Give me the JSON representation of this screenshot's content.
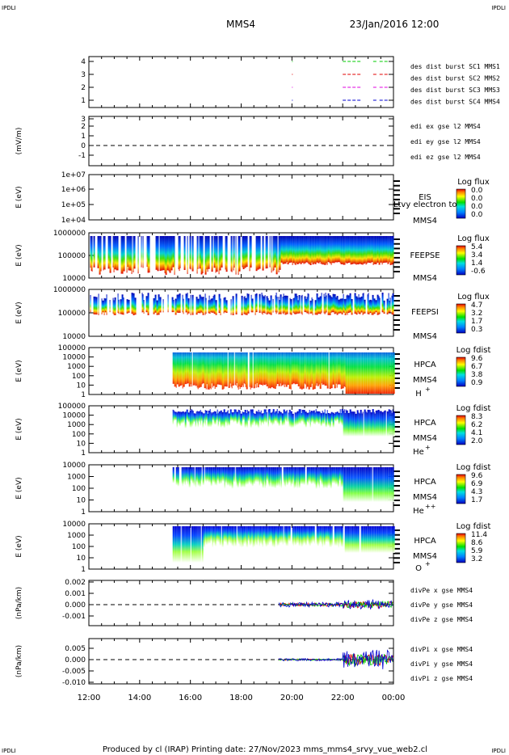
{
  "header": {
    "corner_tl": "IPDLI",
    "corner_tr": "IPDLI",
    "spacecraft": "MMS4",
    "datetime": "23/Jan/2016 12:00"
  },
  "footer": {
    "text": "Produced by cl (IRAP)   Printing date: 27/Nov/2023   mms_mms4_srvy_vue_web2.cl",
    "corner_bl": "IPDLI",
    "corner_br": "IPDLI"
  },
  "colors": {
    "red": "#e00000",
    "magenta": "#e000e0",
    "green": "#00cc00",
    "blue": "#0000d0"
  },
  "chart_data": {
    "type": "heatmap",
    "x_ticks": [
      "12:00",
      "14:00",
      "16:00",
      "18:00",
      "20:00",
      "22:00",
      "00:00"
    ],
    "panels": [
      {
        "id": "des",
        "ylabel": "",
        "y_ticks": [
          "4",
          "3",
          "2",
          "1"
        ],
        "legend": [
          {
            "text": "des dist burst SC1 MMS1",
            "color": "#0000d0"
          },
          {
            "text": "des dist burst SC2 MMS2",
            "color": "#e000e0"
          },
          {
            "text": "des dist burst SC3 MMS3",
            "color": "#e00000"
          },
          {
            "text": "des dist burst SC4 MMS4",
            "color": "#00cc00"
          }
        ]
      },
      {
        "id": "edi",
        "ylabel": "(mV/m)",
        "y_ticks": [
          "3",
          "2",
          "1",
          "0",
          "-1"
        ],
        "legend": [
          {
            "text": "edi ex gse l2 MMS4",
            "color": "#e00000"
          },
          {
            "text": "edi ey gse l2 MMS4",
            "color": "#00cc00"
          },
          {
            "text": "edi ez gse l2 MMS4",
            "color": "#0000d0"
          }
        ]
      },
      {
        "id": "eis",
        "ylabel": "E (eV)",
        "y_ticks": [
          "1e+07",
          "1e+06",
          "1e+05",
          "1e+04"
        ],
        "labels": [
          "EIS",
          "MMS4"
        ],
        "overlay": "Ltvy electron tof",
        "colorbar": {
          "title": "Log flux",
          "ticks": [
            "0.0",
            "0.0",
            "0.0",
            "0.0"
          ]
        }
      },
      {
        "id": "feepse",
        "ylabel": "E (eV)",
        "y_ticks": [
          "1000000",
          "100000",
          "10000"
        ],
        "labels": [
          "FEEPSE",
          "MMS4"
        ],
        "colorbar": {
          "title": "Log flux",
          "ticks": [
            "5.4",
            "3.4",
            "1.4",
            "-0.6"
          ]
        }
      },
      {
        "id": "feepsi",
        "ylabel": "E (eV)",
        "y_ticks": [
          "1000000",
          "100000",
          "10000"
        ],
        "labels": [
          "FEEPSI",
          "MMS4"
        ],
        "colorbar": {
          "title": "Log flux",
          "ticks": [
            "4.7",
            "3.2",
            "1.7",
            "0.3"
          ]
        }
      },
      {
        "id": "hpca_h",
        "ylabel": "E (eV)",
        "y_ticks": [
          "100000",
          "10000",
          "1000",
          "100",
          "10",
          "1"
        ],
        "labels": [
          "HPCA",
          "MMS4"
        ],
        "species": "H",
        "charge": "+",
        "colorbar": {
          "title": "Log fdist",
          "ticks": [
            "9.6",
            "6.7",
            "3.8",
            "0.9"
          ]
        }
      },
      {
        "id": "hpca_he1",
        "ylabel": "E (eV)",
        "y_ticks": [
          "100000",
          "10000",
          "1000",
          "100",
          "10",
          "1"
        ],
        "labels": [
          "HPCA",
          "MMS4"
        ],
        "species": "He",
        "charge": "+",
        "colorbar": {
          "title": "Log fdist",
          "ticks": [
            "8.3",
            "6.2",
            "4.1",
            "2.0"
          ]
        }
      },
      {
        "id": "hpca_he2",
        "ylabel": "E (eV)",
        "y_ticks": [
          "10000",
          "1000",
          "100",
          "10",
          "1"
        ],
        "labels": [
          "HPCA",
          "MMS4"
        ],
        "species": "He",
        "charge": "++",
        "colorbar": {
          "title": "Log fdist",
          "ticks": [
            "9.6",
            "6.9",
            "4.3",
            "1.7"
          ]
        }
      },
      {
        "id": "hpca_o",
        "ylabel": "E (eV)",
        "y_ticks": [
          "10000",
          "1000",
          "100",
          "10",
          "1"
        ],
        "labels": [
          "HPCA",
          "MMS4"
        ],
        "species": "O",
        "charge": "+",
        "colorbar": {
          "title": "Log fdist",
          "ticks": [
            "11.4",
            "8.6",
            "5.9",
            "3.2"
          ]
        }
      },
      {
        "id": "divpe",
        "ylabel": "(nPa/km)",
        "y_ticks": [
          "0.002",
          "0.001",
          "0.000",
          "-0.001"
        ],
        "legend": [
          {
            "text": "divPe x gse MMS4",
            "color": "#e00000"
          },
          {
            "text": "divPe y gse MMS4",
            "color": "#00cc00"
          },
          {
            "text": "divPe z gse MMS4",
            "color": "#0000d0"
          }
        ]
      },
      {
        "id": "divpi",
        "ylabel": "(nPa/km)",
        "y_ticks": [
          "0.005",
          "0.000",
          "-0.005",
          "-0.010"
        ],
        "legend": [
          {
            "text": "divPi x gse MMS4",
            "color": "#e00000"
          },
          {
            "text": "divPi y gse MMS4",
            "color": "#00cc00"
          },
          {
            "text": "divPi z gse MMS4",
            "color": "#0000d0"
          }
        ]
      }
    ]
  }
}
